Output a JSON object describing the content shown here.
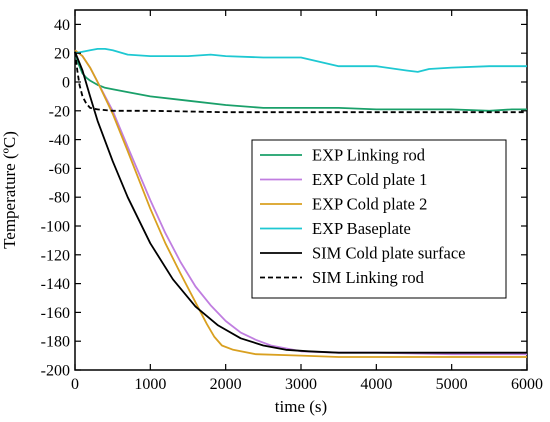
{
  "chart_data": {
    "type": "line",
    "title": "",
    "xlabel": "time (s)",
    "ylabel": "Temperature (ºC)",
    "xlim": [
      0,
      6000
    ],
    "ylim": [
      -200,
      50
    ],
    "x_ticks": [
      0,
      1000,
      2000,
      3000,
      4000,
      5000,
      6000
    ],
    "y_ticks": [
      -200,
      -180,
      -160,
      -140,
      -120,
      -100,
      -80,
      -60,
      -40,
      -20,
      0,
      20,
      40
    ],
    "grid": false,
    "legend_position": "middle-right",
    "series": [
      {
        "name": "EXP Linking rod",
        "color": "#1aa06a",
        "dash": "solid",
        "x": [
          0,
          50,
          100,
          150,
          200,
          300,
          400,
          500,
          700,
          1000,
          1500,
          2000,
          2500,
          3000,
          3500,
          4000,
          4500,
          5000,
          5500,
          5800,
          6000
        ],
        "y": [
          21,
          12,
          6,
          3,
          1,
          -2,
          -4,
          -5,
          -7,
          -10,
          -13,
          -16,
          -18,
          -18,
          -18,
          -19,
          -19,
          -19,
          -20,
          -19,
          -19
        ]
      },
      {
        "name": "EXP Cold plate 1",
        "color": "#c07ee0",
        "dash": "solid",
        "x": [
          0,
          100,
          200,
          300,
          500,
          700,
          1000,
          1200,
          1400,
          1600,
          1800,
          2000,
          2200,
          2400,
          2600,
          2800,
          3000,
          3500,
          4000,
          5000,
          6000
        ],
        "y": [
          22,
          18,
          10,
          0,
          -20,
          -45,
          -82,
          -105,
          -125,
          -142,
          -155,
          -166,
          -174,
          -179,
          -183,
          -185,
          -187,
          -188,
          -188,
          -189,
          -189
        ]
      },
      {
        "name": "EXP Cold plate 2",
        "color": "#d9a020",
        "dash": "solid",
        "x": [
          0,
          100,
          200,
          300,
          500,
          700,
          1000,
          1200,
          1400,
          1600,
          1750,
          1850,
          1950,
          2100,
          2400,
          3000,
          3500,
          4000,
          5000,
          6000
        ],
        "y": [
          22,
          18,
          10,
          0,
          -22,
          -48,
          -88,
          -112,
          -133,
          -153,
          -168,
          -177,
          -183,
          -186,
          -189,
          -190,
          -191,
          -191,
          -191,
          -191
        ]
      },
      {
        "name": "EXP Baseplate",
        "color": "#1ec8d2",
        "dash": "solid",
        "x": [
          0,
          100,
          200,
          300,
          400,
          500,
          700,
          1000,
          1500,
          1800,
          2000,
          2500,
          3000,
          3500,
          4000,
          4400,
          4550,
          4700,
          5000,
          5500,
          6000
        ],
        "y": [
          20,
          21,
          22,
          23,
          23,
          22,
          19,
          18,
          18,
          19,
          18,
          17,
          17,
          11,
          11,
          8,
          7,
          9,
          10,
          11,
          11
        ]
      },
      {
        "name": "SIM Cold plate surface",
        "color": "#000000",
        "dash": "solid",
        "x": [
          0,
          100,
          200,
          300,
          500,
          700,
          1000,
          1300,
          1600,
          1900,
          2200,
          2500,
          2800,
          3100,
          3500,
          4000,
          5000,
          6000
        ],
        "y": [
          21,
          8,
          -10,
          -27,
          -55,
          -80,
          -112,
          -137,
          -156,
          -169,
          -178,
          -183,
          -186,
          -187,
          -188,
          -188,
          -188,
          -188
        ]
      },
      {
        "name": "SIM Linking rod",
        "color": "#000000",
        "dash": "dashed",
        "x": [
          0,
          30,
          60,
          100,
          150,
          200,
          300,
          500,
          1000,
          2000,
          3000,
          4000,
          5000,
          6000
        ],
        "y": [
          21,
          8,
          -2,
          -10,
          -15,
          -18,
          -19,
          -20,
          -20,
          -21,
          -21,
          -21,
          -21,
          -21
        ]
      }
    ]
  }
}
